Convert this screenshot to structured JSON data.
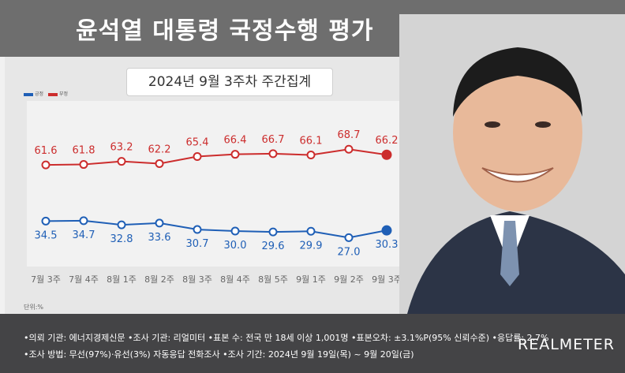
{
  "header": {
    "title": "윤석열 대통령 국정수행 평가"
  },
  "subtitle": "2024년 9월 3주차 주간집계",
  "legend": {
    "positive": "긍정",
    "negative": "부정"
  },
  "unit": "단위:%",
  "colors": {
    "positive": "#1f5fb6",
    "negative": "#cc2d2d",
    "axis": "#cfcfcf",
    "tick": "#666666"
  },
  "chart_data": {
    "type": "line",
    "categories": [
      "7월 3주",
      "7월 4주",
      "8월 1주",
      "8월 2주",
      "8월 3주",
      "8월 4주",
      "8월 5주",
      "9월 1주",
      "9월 2주",
      "9월 3주"
    ],
    "series": [
      {
        "name": "부정",
        "values": [
          61.6,
          61.8,
          63.2,
          62.2,
          65.4,
          66.4,
          66.7,
          66.1,
          68.7,
          66.2
        ]
      },
      {
        "name": "긍정",
        "values": [
          34.5,
          34.7,
          32.8,
          33.6,
          30.7,
          30.0,
          29.6,
          29.9,
          27.0,
          30.3
        ]
      }
    ]
  },
  "footer": {
    "line1": "•의뢰 기관: 에너지경제신문 •조사 기관: 리얼미터 •표본 수: 전국 만 18세 이상 1,001명 •표본오차: ±3.1%P(95% 신뢰수준) •응답률: 2.7%",
    "line2": "•조사 방법: 무선(97%)·유선(3%) 자동응답 전화조사 •조사 기간: 2024년 9월 19일(목) ~ 9월 20일(금)",
    "logo": "REALMETER"
  }
}
